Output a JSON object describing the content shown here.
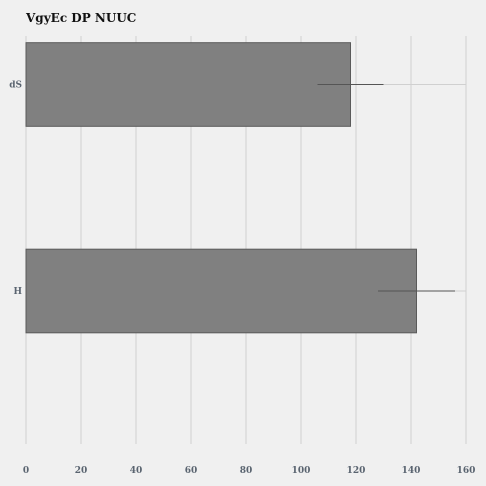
{
  "chart_data": {
    "type": "bar",
    "orientation": "horizontal",
    "title": "VgyEc DP NUUC",
    "xlabel": "",
    "ylabel": "",
    "categories": [
      "dS",
      "H"
    ],
    "values": [
      118,
      142
    ],
    "error_low": [
      106,
      128
    ],
    "error_high": [
      130,
      156
    ],
    "error_extent": [
      160,
      160
    ],
    "xlim": [
      0,
      160
    ],
    "xticks": [
      0,
      20,
      40,
      60,
      80,
      100,
      120,
      140,
      160
    ],
    "grid": "vertical",
    "colors": {
      "background": "#f0f0f0",
      "bar": "#808080",
      "bar_edge": "#5a5a5a",
      "grid": "#d0d0d0",
      "tick_text": "#5a6470"
    }
  }
}
